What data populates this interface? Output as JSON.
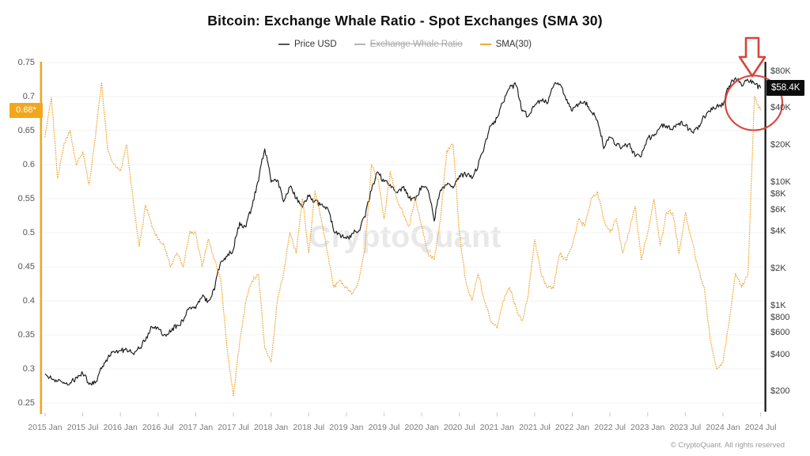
{
  "title": "Bitcoin: Exchange Whale Ratio - Spot Exchanges (SMA 30)",
  "watermark": "CryptoQuant",
  "copyright": "© CryptoQuant. All rights reserved",
  "colors": {
    "gold": "#F2A71B",
    "gold_line": "#EFA93C",
    "price_line": "#1a1a1a",
    "annotation_red": "#D9433B",
    "grid": "#f3f3f3",
    "right_axis": "#111111"
  },
  "legend": {
    "items": [
      {
        "label": "Price USD",
        "swatch_color": "#555555",
        "text_color": "#333333",
        "strikethrough": false,
        "enabled": true
      },
      {
        "label": "Exchange Whale Ratio",
        "swatch_color": "#b5b5b5",
        "text_color": "#a8a8a8",
        "strikethrough": true,
        "enabled": false
      },
      {
        "label": "SMA(30)",
        "swatch_color": "#EFA93C",
        "text_color": "#333333",
        "strikethrough": false,
        "enabled": true
      }
    ]
  },
  "axes": {
    "left": {
      "scale": "linear",
      "range": [
        0.25,
        0.75
      ],
      "ticks": [
        "0.75",
        "0.7",
        "0.65",
        "0.6",
        "0.55",
        "0.5",
        "0.45",
        "0.4",
        "0.35",
        "0.3",
        "0.25"
      ],
      "current_badge": {
        "label": "0.68*",
        "value": 0.68,
        "bg": "#F2A71B"
      }
    },
    "right": {
      "scale": "log",
      "ticks": [
        {
          "label": "$80K",
          "value": 80000
        },
        {
          "label": "$40K",
          "value": 40000
        },
        {
          "label": "$20K",
          "value": 20000
        },
        {
          "label": "$10K",
          "value": 10000
        },
        {
          "label": "$8K",
          "value": 8000
        },
        {
          "label": "$6K",
          "value": 6000
        },
        {
          "label": "$4K",
          "value": 4000
        },
        {
          "label": "$2K",
          "value": 2000
        },
        {
          "label": "$1K",
          "value": 1000
        },
        {
          "label": "$800",
          "value": 800
        },
        {
          "label": "$600",
          "value": 600
        },
        {
          "label": "$400",
          "value": 400
        },
        {
          "label": "$200",
          "value": 200
        }
      ],
      "current_badge": {
        "label": "$58.4K",
        "value": 58400,
        "bg": "#0d0d0d"
      }
    },
    "x": {
      "ticks": [
        "2015 Jan",
        "2015 Jul",
        "2016 Jan",
        "2016 Jul",
        "2017 Jan",
        "2017 Jul",
        "2018 Jan",
        "2018 Jul",
        "2019 Jan",
        "2019 Jul",
        "2020 Jan",
        "2020 Jul",
        "2021 Jan",
        "2021 Jul",
        "2022 Jan",
        "2022 Jul",
        "2023 Jan",
        "2023 Jul",
        "2024 Jan",
        "2024 Jul"
      ]
    }
  },
  "chart_data": {
    "type": "line",
    "title": "Bitcoin: Exchange Whale Ratio - Spot Exchanges (SMA 30)",
    "legend_position": "top",
    "grid": "horizontal-faint",
    "left_axis": {
      "scale": "linear",
      "range": [
        0.25,
        0.75
      ],
      "latest_value": 0.68
    },
    "right_axis": {
      "scale": "log",
      "tick_range": [
        200,
        80000
      ],
      "latest_value": 58400
    },
    "x_monthly": [
      "2015-01",
      "2015-02",
      "2015-03",
      "2015-04",
      "2015-05",
      "2015-06",
      "2015-07",
      "2015-08",
      "2015-09",
      "2015-10",
      "2015-11",
      "2015-12",
      "2016-01",
      "2016-02",
      "2016-03",
      "2016-04",
      "2016-05",
      "2016-06",
      "2016-07",
      "2016-08",
      "2016-09",
      "2016-10",
      "2016-11",
      "2016-12",
      "2017-01",
      "2017-02",
      "2017-03",
      "2017-04",
      "2017-05",
      "2017-06",
      "2017-07",
      "2017-08",
      "2017-09",
      "2017-10",
      "2017-11",
      "2017-12",
      "2018-01",
      "2018-02",
      "2018-03",
      "2018-04",
      "2018-05",
      "2018-06",
      "2018-07",
      "2018-08",
      "2018-09",
      "2018-10",
      "2018-11",
      "2018-12",
      "2019-01",
      "2019-02",
      "2019-03",
      "2019-04",
      "2019-05",
      "2019-06",
      "2019-07",
      "2019-08",
      "2019-09",
      "2019-10",
      "2019-11",
      "2019-12",
      "2020-01",
      "2020-02",
      "2020-03",
      "2020-04",
      "2020-05",
      "2020-06",
      "2020-07",
      "2020-08",
      "2020-09",
      "2020-10",
      "2020-11",
      "2020-12",
      "2021-01",
      "2021-02",
      "2021-03",
      "2021-04",
      "2021-05",
      "2021-06",
      "2021-07",
      "2021-08",
      "2021-09",
      "2021-10",
      "2021-11",
      "2021-12",
      "2022-01",
      "2022-02",
      "2022-03",
      "2022-04",
      "2022-05",
      "2022-06",
      "2022-07",
      "2022-08",
      "2022-09",
      "2022-10",
      "2022-11",
      "2022-12",
      "2023-01",
      "2023-02",
      "2023-03",
      "2023-04",
      "2023-05",
      "2023-06",
      "2023-07",
      "2023-08",
      "2023-09",
      "2023-10",
      "2023-11",
      "2023-12",
      "2024-01",
      "2024-02",
      "2024-03",
      "2024-04",
      "2024-05",
      "2024-06",
      "2024-07"
    ],
    "series": [
      {
        "name": "Price USD",
        "axis": "right",
        "color": "#1a1a1a",
        "style": "solid",
        "visible": true,
        "values": [
          280,
          255,
          245,
          235,
          235,
          260,
          285,
          230,
          235,
          310,
          375,
          430,
          430,
          435,
          415,
          450,
          530,
          670,
          655,
          575,
          610,
          700,
          745,
          960,
          965,
          1180,
          1080,
          1350,
          2300,
          2480,
          2870,
          4700,
          4340,
          6450,
          10200,
          18700,
          10200,
          10300,
          7000,
          9250,
          7500,
          6400,
          7750,
          7000,
          6600,
          6300,
          4000,
          3740,
          3450,
          3850,
          4100,
          5300,
          8550,
          12000,
          10100,
          9600,
          8300,
          9150,
          7550,
          7200,
          9350,
          8550,
          4900,
          8600,
          9450,
          9150,
          11350,
          11650,
          10800,
          13800,
          19700,
          29000,
          33100,
          45200,
          58800,
          62000,
          37300,
          35000,
          41500,
          47100,
          43800,
          61300,
          64000,
          46200,
          38500,
          43200,
          45500,
          37700,
          31800,
          19000,
          23300,
          20050,
          19400,
          20500,
          16500,
          16550,
          23100,
          23500,
          28500,
          29250,
          27200,
          30450,
          29200,
          26000,
          26950,
          34650,
          37700,
          42250,
          42600,
          61200,
          71300,
          60600,
          67500,
          62700,
          58400
        ]
      },
      {
        "name": "SMA(30)",
        "axis": "left",
        "color": "#EFA93C",
        "style": "dotted",
        "visible": true,
        "values": [
          0.64,
          0.7,
          0.58,
          0.63,
          0.65,
          0.6,
          0.62,
          0.57,
          0.64,
          0.72,
          0.62,
          0.6,
          0.59,
          0.63,
          0.55,
          0.48,
          0.54,
          0.51,
          0.49,
          0.48,
          0.45,
          0.47,
          0.45,
          0.5,
          0.5,
          0.45,
          0.49,
          0.46,
          0.43,
          0.33,
          0.26,
          0.34,
          0.4,
          0.43,
          0.44,
          0.33,
          0.31,
          0.4,
          0.44,
          0.5,
          0.47,
          0.55,
          0.47,
          0.56,
          0.52,
          0.47,
          0.42,
          0.43,
          0.42,
          0.41,
          0.43,
          0.48,
          0.6,
          0.58,
          0.52,
          0.59,
          0.55,
          0.53,
          0.51,
          0.55,
          0.51,
          0.47,
          0.46,
          0.52,
          0.62,
          0.63,
          0.5,
          0.43,
          0.4,
          0.44,
          0.4,
          0.37,
          0.36,
          0.4,
          0.42,
          0.39,
          0.37,
          0.41,
          0.49,
          0.44,
          0.42,
          0.42,
          0.47,
          0.46,
          0.48,
          0.52,
          0.51,
          0.55,
          0.56,
          0.52,
          0.5,
          0.52,
          0.47,
          0.5,
          0.54,
          0.46,
          0.5,
          0.55,
          0.48,
          0.53,
          0.53,
          0.47,
          0.53,
          0.49,
          0.45,
          0.42,
          0.34,
          0.3,
          0.31,
          0.37,
          0.44,
          0.42,
          0.44,
          0.7,
          0.68
        ]
      },
      {
        "name": "Exchange Whale Ratio",
        "axis": "left",
        "color": "#b5b5b5",
        "style": "solid",
        "visible": false,
        "values": []
      }
    ],
    "annotations": [
      {
        "type": "down-arrow",
        "color": "#D9433B",
        "near": "2024-06",
        "comment": "red block arrow pointing at final SMA spike"
      },
      {
        "type": "circle-highlight",
        "color": "#D9433B",
        "near": "2024-05..2024-07",
        "comment": "red circle around SMA spike to 0.70 and price near $58.4K"
      },
      {
        "type": "axis-badge",
        "side": "left",
        "label": "0.68*"
      },
      {
        "type": "axis-badge",
        "side": "right",
        "label": "$58.4K"
      }
    ]
  }
}
